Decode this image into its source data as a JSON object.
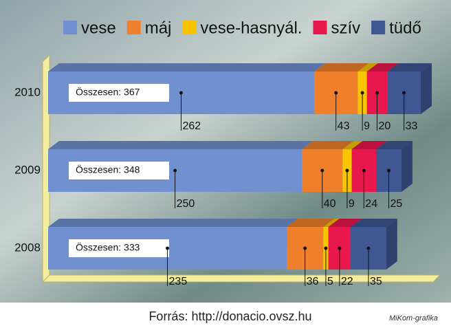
{
  "chart_data": {
    "type": "stacked-bar-3d",
    "categories": [
      "2010",
      "2009",
      "2008"
    ],
    "series": [
      {
        "name": "vese",
        "color": "#7090d0",
        "values": [
          262,
          250,
          235
        ]
      },
      {
        "name": "máj",
        "color": "#f07f2c",
        "values": [
          43,
          40,
          36
        ]
      },
      {
        "name": "vese-hasnyál.",
        "color": "#f8c400",
        "values": [
          9,
          9,
          5
        ]
      },
      {
        "name": "szív",
        "color": "#e8174c",
        "values": [
          20,
          24,
          22
        ]
      },
      {
        "name": "tüdő",
        "color": "#3f5792",
        "values": [
          33,
          25,
          35
        ]
      }
    ],
    "total_labels": [
      "Összesen: 367",
      "Összesen: 348",
      "Összesen: 333"
    ],
    "source": "Forrás: http://donacio.ovsz.hu",
    "credit": "MiKom-grafika"
  }
}
